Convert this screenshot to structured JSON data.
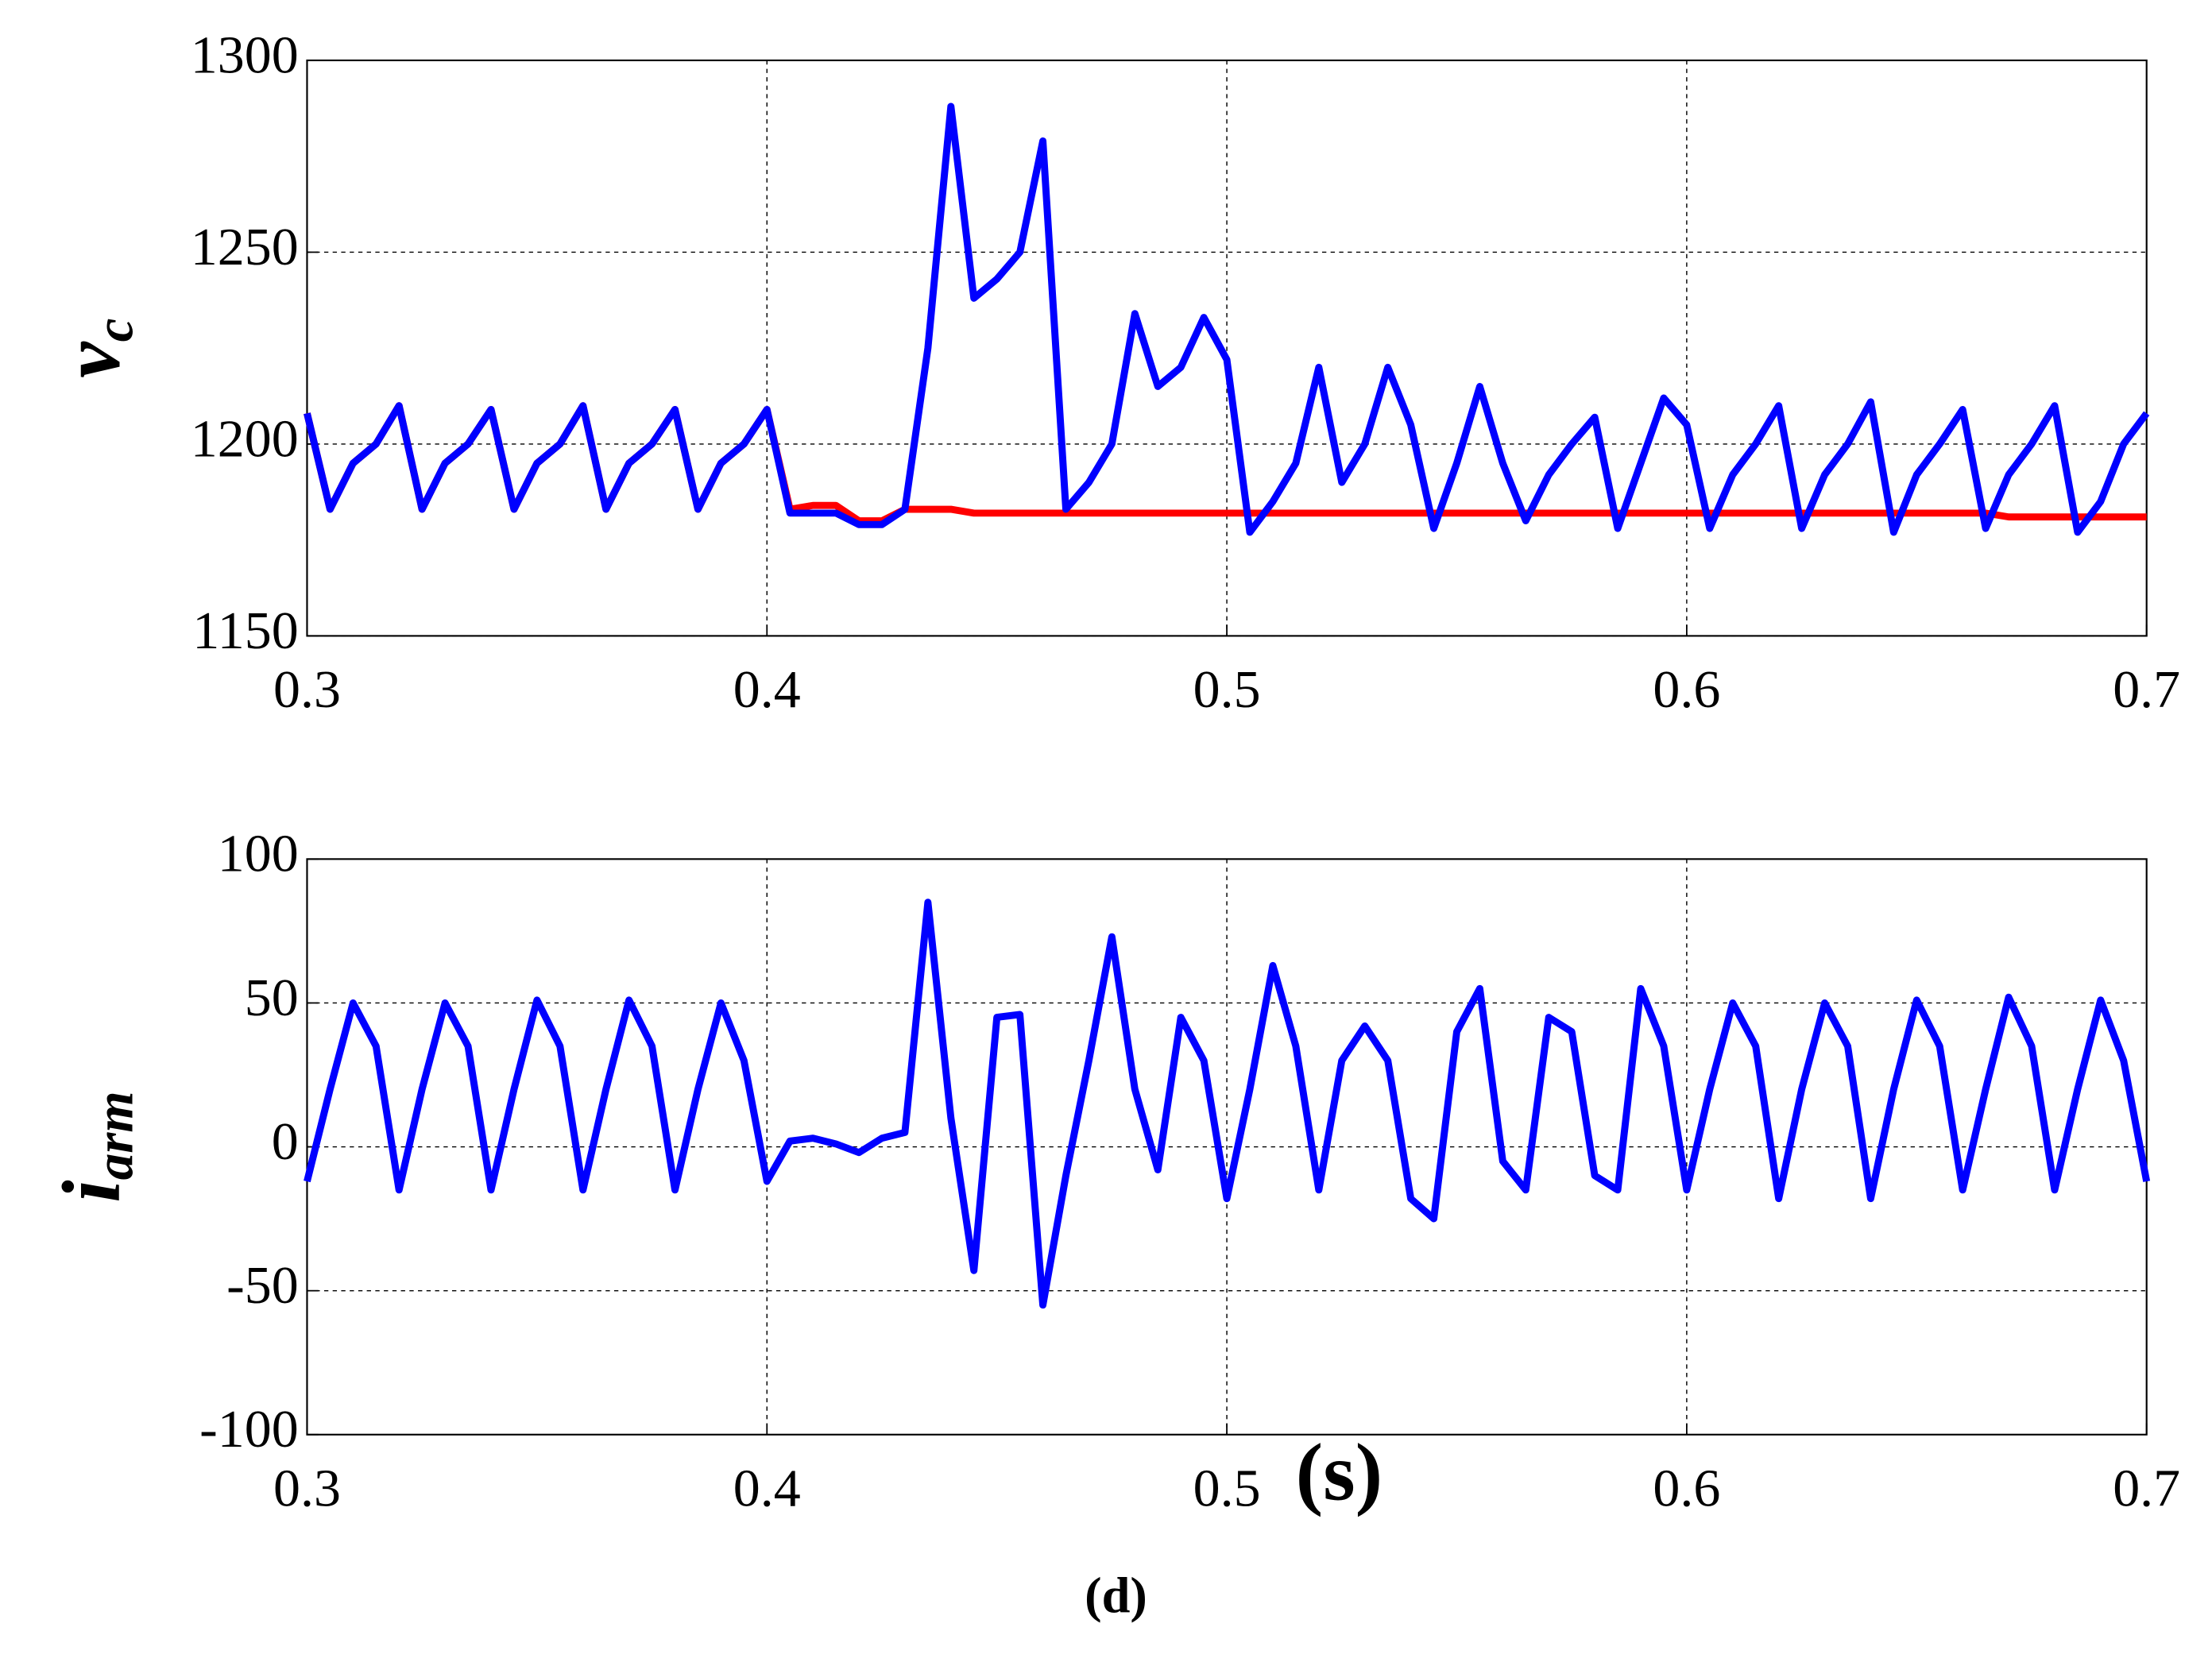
{
  "chart_data": [
    {
      "type": "line",
      "ylabel": "v",
      "ylabel_sub": "c",
      "x": [
        0.3,
        0.305,
        0.31,
        0.315,
        0.32,
        0.325,
        0.33,
        0.335,
        0.34,
        0.345,
        0.35,
        0.355,
        0.36,
        0.365,
        0.37,
        0.375,
        0.38,
        0.385,
        0.39,
        0.395,
        0.4,
        0.405,
        0.41,
        0.415,
        0.42,
        0.425,
        0.43,
        0.435,
        0.44,
        0.445,
        0.45,
        0.455,
        0.46,
        0.465,
        0.47,
        0.475,
        0.48,
        0.485,
        0.49,
        0.495,
        0.5,
        0.505,
        0.51,
        0.515,
        0.52,
        0.525,
        0.53,
        0.535,
        0.54,
        0.545,
        0.55,
        0.555,
        0.56,
        0.565,
        0.57,
        0.575,
        0.58,
        0.585,
        0.59,
        0.595,
        0.6,
        0.605,
        0.61,
        0.615,
        0.62,
        0.625,
        0.63,
        0.635,
        0.64,
        0.645,
        0.65,
        0.655,
        0.66,
        0.665,
        0.67,
        0.675,
        0.68,
        0.685,
        0.69,
        0.695,
        0.7
      ],
      "series": [
        {
          "color": "#ff0000",
          "values": [
            1208,
            1183,
            1195,
            1200,
            1210,
            1183,
            1195,
            1200,
            1209,
            1183,
            1195,
            1200,
            1210,
            1183,
            1195,
            1200,
            1209,
            1183,
            1195,
            1200,
            1209,
            1183,
            1184,
            1184,
            1180,
            1180,
            1183,
            1183,
            1183,
            1182,
            1182,
            1182,
            1182,
            1182,
            1182,
            1182,
            1182,
            1182,
            1182,
            1182,
            1182,
            1182,
            1182,
            1182,
            1182,
            1182,
            1182,
            1182,
            1182,
            1182,
            1182,
            1182,
            1182,
            1182,
            1182,
            1182,
            1182,
            1182,
            1182,
            1182,
            1182,
            1182,
            1182,
            1182,
            1182,
            1182,
            1182,
            1182,
            1182,
            1182,
            1182,
            1182,
            1182,
            1182,
            1181,
            1181,
            1181,
            1181,
            1181,
            1181,
            1181
          ]
        },
        {
          "color": "#0000ff",
          "values": [
            1208,
            1183,
            1195,
            1200,
            1210,
            1183,
            1195,
            1200,
            1209,
            1183,
            1195,
            1200,
            1210,
            1183,
            1195,
            1200,
            1209,
            1183,
            1195,
            1200,
            1209,
            1182,
            1182,
            1182,
            1179,
            1179,
            1183,
            1225,
            1288,
            1238,
            1243,
            1250,
            1279,
            1183,
            1190,
            1200,
            1234,
            1215,
            1220,
            1233,
            1222,
            1177,
            1185,
            1195,
            1220,
            1190,
            1200,
            1220,
            1205,
            1178,
            1195,
            1215,
            1195,
            1180,
            1192,
            1200,
            1207,
            1178,
            1195,
            1212,
            1205,
            1178,
            1192,
            1200,
            1210,
            1178,
            1192,
            1200,
            1211,
            1177,
            1192,
            1200,
            1209,
            1178,
            1192,
            1200,
            1210,
            1177,
            1185,
            1200,
            1208
          ]
        }
      ],
      "xlim": [
        0.3,
        0.7
      ],
      "xticks": [
        0.3,
        0.4,
        0.5,
        0.6,
        0.7
      ],
      "ylim": [
        1150,
        1300
      ],
      "yticks": [
        1150,
        1200,
        1250,
        1300
      ],
      "grid": true
    },
    {
      "type": "line",
      "ylabel": "i",
      "ylabel_sub": "arm",
      "xlabel": "(s)",
      "x": [
        0.3,
        0.305,
        0.31,
        0.315,
        0.32,
        0.325,
        0.33,
        0.335,
        0.34,
        0.345,
        0.35,
        0.355,
        0.36,
        0.365,
        0.37,
        0.375,
        0.38,
        0.385,
        0.39,
        0.395,
        0.4,
        0.405,
        0.41,
        0.415,
        0.42,
        0.425,
        0.43,
        0.435,
        0.44,
        0.445,
        0.45,
        0.455,
        0.46,
        0.465,
        0.47,
        0.475,
        0.48,
        0.485,
        0.49,
        0.495,
        0.5,
        0.505,
        0.51,
        0.515,
        0.52,
        0.525,
        0.53,
        0.535,
        0.54,
        0.545,
        0.55,
        0.555,
        0.56,
        0.565,
        0.57,
        0.575,
        0.58,
        0.585,
        0.59,
        0.595,
        0.6,
        0.605,
        0.61,
        0.615,
        0.62,
        0.625,
        0.63,
        0.635,
        0.64,
        0.645,
        0.65,
        0.655,
        0.66,
        0.665,
        0.67,
        0.675,
        0.68,
        0.685,
        0.69,
        0.695,
        0.7
      ],
      "series": [
        {
          "color": "#0000ff",
          "values": [
            -12,
            20,
            50,
            35,
            -15,
            20,
            50,
            35,
            -15,
            20,
            51,
            35,
            -15,
            20,
            51,
            35,
            -15,
            20,
            50,
            30,
            -12,
            2,
            3,
            1,
            -2,
            3,
            5,
            85,
            10,
            -43,
            45,
            46,
            -55,
            -10,
            30,
            73,
            20,
            -8,
            45,
            30,
            -18,
            20,
            63,
            35,
            -15,
            30,
            42,
            30,
            -18,
            -25,
            40,
            55,
            -5,
            -15,
            45,
            40,
            -10,
            -15,
            55,
            35,
            -15,
            20,
            50,
            35,
            -18,
            20,
            50,
            35,
            -18,
            20,
            51,
            35,
            -15,
            20,
            52,
            35,
            -15,
            20,
            51,
            30,
            -12
          ]
        }
      ],
      "xlim": [
        0.3,
        0.7
      ],
      "xticks": [
        0.3,
        0.4,
        0.5,
        0.6,
        0.7
      ],
      "ylim": [
        -100,
        100
      ],
      "yticks": [
        -100,
        -50,
        0,
        50,
        100
      ],
      "grid": true
    }
  ],
  "caption": "(d)"
}
